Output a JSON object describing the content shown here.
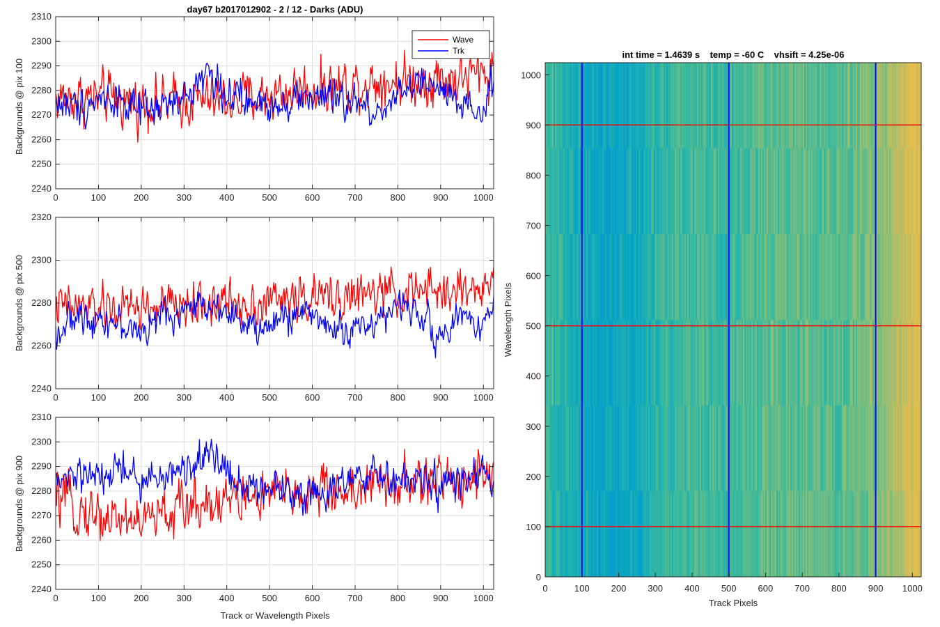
{
  "window": {
    "background": "#ffffff"
  },
  "chart_data": [
    {
      "type": "line",
      "title": "day67 b2017012902 - 2 / 12 - Darks (ADU)",
      "xlabel": "",
      "ylabel": "Backgrounds @ pix 100",
      "xlim": [
        0,
        1024
      ],
      "ylim": [
        2240,
        2310
      ],
      "xticks": [
        0,
        100,
        200,
        300,
        400,
        500,
        600,
        700,
        800,
        900,
        1000
      ],
      "yticks": [
        2240,
        2250,
        2260,
        2270,
        2280,
        2290,
        2300,
        2310
      ],
      "grid": true,
      "legend": {
        "placement": "top-right",
        "entries": [
          "Wave",
          "Trk"
        ]
      },
      "series": [
        {
          "name": "Wave",
          "color": "#ff0000",
          "x": [
            0,
            50,
            100,
            150,
            200,
            250,
            300,
            350,
            400,
            450,
            500,
            550,
            600,
            650,
            700,
            750,
            800,
            850,
            900,
            950,
            1000,
            1024
          ],
          "mean": [
            2277,
            2277,
            2277,
            2276,
            2275,
            2275,
            2276,
            2276,
            2276,
            2277,
            2278,
            2280,
            2281,
            2282,
            2283,
            2284,
            2284,
            2284,
            2285,
            2285,
            2287,
            2289
          ],
          "noise": 7
        },
        {
          "name": "Trk",
          "color": "#0000ff",
          "x": [
            0,
            50,
            100,
            150,
            200,
            250,
            300,
            350,
            400,
            450,
            500,
            550,
            600,
            650,
            700,
            750,
            800,
            850,
            900,
            950,
            1000,
            1024
          ],
          "mean": [
            2275,
            2273,
            2277,
            2277,
            2270,
            2273,
            2276,
            2288,
            2279,
            2274,
            2275,
            2276,
            2278,
            2276,
            2275,
            2270,
            2280,
            2282,
            2280,
            2272,
            2270,
            2285
          ],
          "noise": 5
        }
      ]
    },
    {
      "type": "line",
      "title": "",
      "xlabel": "",
      "ylabel": "Backgrounds @ pix 500",
      "xlim": [
        0,
        1024
      ],
      "ylim": [
        2240,
        2320
      ],
      "xticks": [
        0,
        100,
        200,
        300,
        400,
        500,
        600,
        700,
        800,
        900,
        1000
      ],
      "yticks": [
        2240,
        2260,
        2280,
        2300,
        2320
      ],
      "grid": true,
      "series": [
        {
          "name": "Wave",
          "color": "#ff0000",
          "x": [
            0,
            50,
            100,
            150,
            200,
            250,
            300,
            350,
            400,
            450,
            500,
            550,
            600,
            650,
            700,
            750,
            800,
            850,
            900,
            950,
            1000,
            1024
          ],
          "mean": [
            2278,
            2278,
            2277,
            2277,
            2278,
            2278,
            2279,
            2280,
            2280,
            2280,
            2281,
            2282,
            2282,
            2283,
            2283,
            2284,
            2285,
            2285,
            2285,
            2286,
            2287,
            2289
          ],
          "noise": 7
        },
        {
          "name": "Trk",
          "color": "#0000ff",
          "x": [
            0,
            50,
            100,
            150,
            200,
            250,
            300,
            350,
            400,
            450,
            500,
            550,
            600,
            650,
            700,
            750,
            800,
            850,
            900,
            950,
            1000,
            1024
          ],
          "mean": [
            2266,
            2273,
            2274,
            2270,
            2266,
            2274,
            2276,
            2280,
            2278,
            2267,
            2269,
            2275,
            2276,
            2267,
            2268,
            2272,
            2278,
            2278,
            2262,
            2275,
            2270,
            2280
          ],
          "noise": 5
        }
      ]
    },
    {
      "type": "line",
      "title": "",
      "xlabel": "Track or Wavelength Pixels",
      "ylabel": "Backgrounds @ pix 900",
      "xlim": [
        0,
        1024
      ],
      "ylim": [
        2240,
        2310
      ],
      "xticks": [
        0,
        100,
        200,
        300,
        400,
        500,
        600,
        700,
        800,
        900,
        1000
      ],
      "yticks": [
        2240,
        2250,
        2260,
        2270,
        2280,
        2290,
        2300,
        2310
      ],
      "grid": true,
      "series": [
        {
          "name": "Wave",
          "color": "#ff0000",
          "x": [
            0,
            50,
            100,
            150,
            200,
            250,
            300,
            350,
            400,
            450,
            500,
            550,
            600,
            650,
            700,
            750,
            800,
            850,
            900,
            950,
            1000,
            1024
          ],
          "mean": [
            2277,
            2273,
            2270,
            2269,
            2268,
            2270,
            2273,
            2276,
            2277,
            2277,
            2278,
            2279,
            2280,
            2280,
            2281,
            2282,
            2282,
            2283,
            2284,
            2285,
            2288,
            2289
          ],
          "noise": 7
        },
        {
          "name": "Trk",
          "color": "#0000ff",
          "x": [
            0,
            50,
            100,
            150,
            200,
            250,
            300,
            350,
            400,
            450,
            500,
            550,
            600,
            650,
            700,
            750,
            800,
            850,
            900,
            950,
            1000,
            1024
          ],
          "mean": [
            2282,
            2287,
            2284,
            2290,
            2283,
            2286,
            2288,
            2296,
            2289,
            2281,
            2282,
            2280,
            2279,
            2282,
            2284,
            2286,
            2284,
            2284,
            2282,
            2284,
            2286,
            2284
          ],
          "noise": 5
        }
      ]
    },
    {
      "type": "heatmap",
      "title": "int time = 1.4639 s    temp = -60 C    vhsift = 4.25e-06",
      "xlabel": "Track Pixels",
      "ylabel": "Wavelength Pixels",
      "xlim": [
        0,
        1024
      ],
      "ylim": [
        0,
        1024
      ],
      "xticks": [
        0,
        100,
        200,
        300,
        400,
        500,
        600,
        700,
        800,
        900,
        1000
      ],
      "yticks": [
        0,
        100,
        200,
        300,
        400,
        500,
        600,
        700,
        800,
        900,
        1000
      ],
      "colormap": "parula",
      "column_profile": {
        "x": [
          0,
          50,
          100,
          150,
          200,
          250,
          300,
          400,
          500,
          600,
          700,
          800,
          900,
          950,
          1000,
          1024
        ],
        "level": [
          0.52,
          0.48,
          0.45,
          0.42,
          0.42,
          0.44,
          0.5,
          0.53,
          0.52,
          0.56,
          0.56,
          0.55,
          0.6,
          0.66,
          0.72,
          0.74
        ]
      },
      "overlay_lines": {
        "vertical": {
          "x": [
            100,
            500,
            900
          ],
          "color": "#0000ff"
        },
        "horizontal": {
          "y": [
            100,
            500,
            900
          ],
          "color": "#ff0000"
        }
      }
    }
  ]
}
